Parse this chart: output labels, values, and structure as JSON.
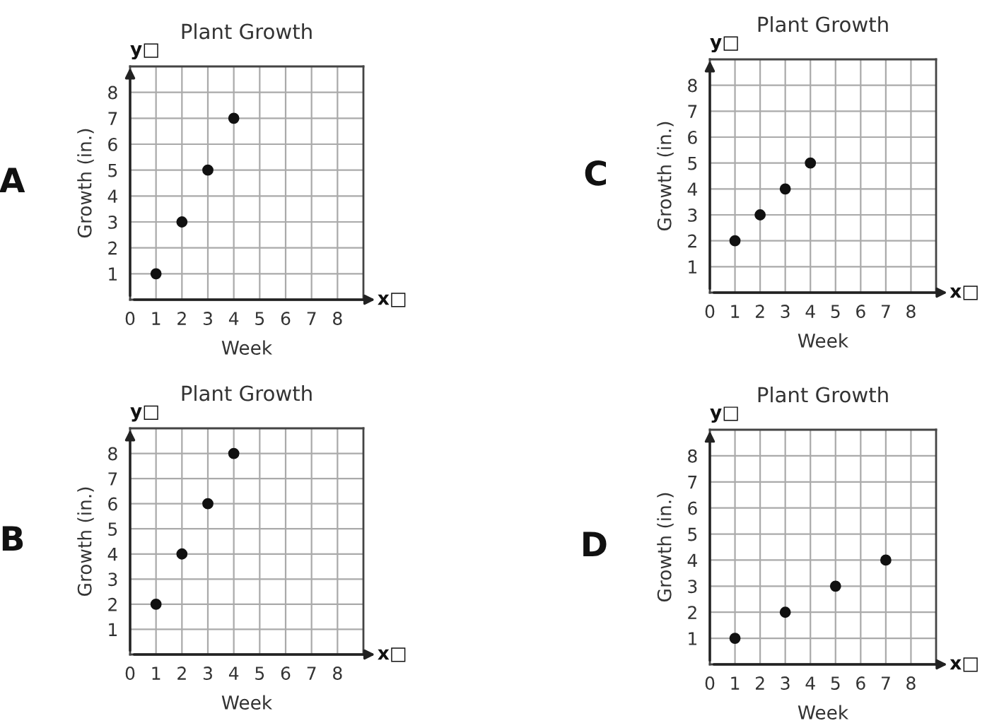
{
  "chart_data": [
    {
      "type": "scatter",
      "title": "Plant Growth",
      "xlabel": "Week",
      "ylabel": "Growth (in.)",
      "annotations": [
        "A",
        "y□",
        "x□"
      ],
      "x": [
        1,
        2,
        3,
        4
      ],
      "values": [
        1,
        3,
        5,
        7
      ],
      "color": "#111111",
      "marker": "circle",
      "xlim": [
        0,
        9
      ],
      "ylim": [
        0,
        9
      ],
      "xticks": [
        0,
        1,
        2,
        3,
        4,
        5,
        6,
        7,
        8
      ],
      "yticks": [
        1,
        2,
        3,
        4,
        5,
        6,
        7,
        8
      ],
      "grid": true
    },
    {
      "type": "scatter",
      "title": "Plant Growth",
      "xlabel": "Week",
      "ylabel": "Growth (in.)",
      "annotations": [
        "C",
        "y□",
        "x□"
      ],
      "x": [
        1,
        2,
        3,
        4
      ],
      "values": [
        2,
        3,
        4,
        5
      ],
      "color": "#111111",
      "marker": "circle",
      "xlim": [
        0,
        9
      ],
      "ylim": [
        0,
        9
      ],
      "xticks": [
        0,
        1,
        2,
        3,
        4,
        5,
        6,
        7,
        8
      ],
      "yticks": [
        1,
        2,
        3,
        4,
        5,
        6,
        7,
        8
      ],
      "grid": true
    },
    {
      "type": "scatter",
      "title": "Plant Growth",
      "xlabel": "Week",
      "ylabel": "Growth (in.)",
      "annotations": [
        "B",
        "y□",
        "x□"
      ],
      "x": [
        1,
        2,
        3,
        4
      ],
      "values": [
        2,
        4,
        6,
        8
      ],
      "color": "#111111",
      "marker": "circle",
      "xlim": [
        0,
        9
      ],
      "ylim": [
        0,
        9
      ],
      "xticks": [
        0,
        1,
        2,
        3,
        4,
        5,
        6,
        7,
        8
      ],
      "yticks": [
        1,
        2,
        3,
        4,
        5,
        6,
        7,
        8
      ],
      "grid": true
    },
    {
      "type": "scatter",
      "title": "Plant Growth",
      "xlabel": "Week",
      "ylabel": "Growth (in.)",
      "annotations": [
        "D",
        "y□",
        "x□"
      ],
      "x": [
        1,
        3,
        5,
        7
      ],
      "values": [
        1,
        2,
        3,
        4
      ],
      "color": "#111111",
      "marker": "circle",
      "xlim": [
        0,
        9
      ],
      "ylim": [
        0,
        9
      ],
      "xticks": [
        0,
        1,
        2,
        3,
        4,
        5,
        6,
        7,
        8
      ],
      "yticks": [
        1,
        2,
        3,
        4,
        5,
        6,
        7,
        8
      ],
      "grid": true
    }
  ]
}
